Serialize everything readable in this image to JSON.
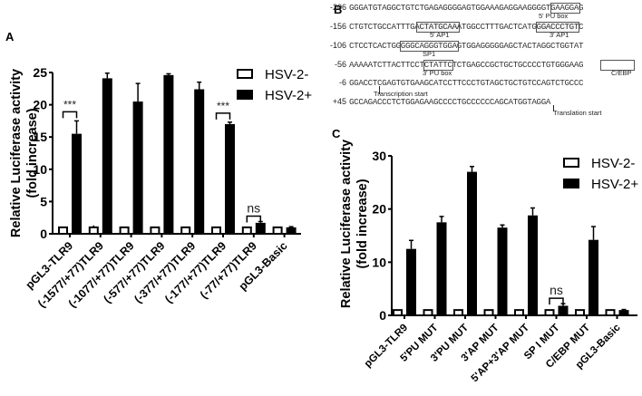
{
  "panels": {
    "A": {
      "label": "A"
    },
    "B": {
      "label": "B"
    },
    "C": {
      "label": "C"
    }
  },
  "legend": {
    "neg": "HSV-2-",
    "pos": "HSV-2+"
  },
  "ylabel_line1": "Relative Luciferase activity",
  "ylabel_line2": "(fold increase)",
  "sequence": {
    "lines": [
      {
        "num": "-206",
        "seq": "GGGATGTAGGCTGTCTGAGAGGGGAGTGGAAAGAGGAAGGGGTGAAGGAG"
      },
      {
        "num": "-156",
        "seq": "CTGTCTGCCATTTGACTATGCAAATGGCCTTTGACTCATGGGACCCTGTC"
      },
      {
        "num": "-106",
        "seq": "CTCCTCACTGGGGGCAGGGTGGAGTGGAGGGGGAGCTACTAGGCTGGTAT"
      },
      {
        "num": "-56",
        "seq": "AAAAATCTTACTTCCTCTATTCTCTGAGCCGCTGCTGCCCCTGTGGGAAG"
      },
      {
        "num": "-6",
        "seq": "GGACCTCGAGTGTGAAGCATCCTTCCCTGTAGCTGCTGTCCAGTCTGCCC"
      },
      {
        "num": "+45",
        "seq": "GCCAGACCCTCTGGAGAAGCCCCTGCCCCCCAGCATGGTAGGA"
      }
    ],
    "annotations": {
      "pu5": "5' PU box",
      "ap1_5": "5' AP1",
      "ap1_3": "3' AP1",
      "sp1": "SP1",
      "pu3": "3' PU box",
      "cebp": "C/EBP",
      "tx_start": "Transcription start",
      "tl_start": "Translation start"
    }
  },
  "chart_data": [
    {
      "panel": "A",
      "type": "bar",
      "title": "",
      "xlabel": "",
      "ylabel": "Relative Luciferase activity (fold increase)",
      "ylim": [
        0,
        25
      ],
      "yticks": [
        0,
        5,
        10,
        15,
        20,
        25
      ],
      "categories": [
        "pGL3-TLR9",
        "(-1577/+77)TLR9",
        "(-1077/+77)TLR9",
        "(-577/+77)TLR9",
        "(-377/+77)TLR9",
        "(-177/+77)TLR9",
        "(-77/+77)TLR9",
        "pGL3-Basic"
      ],
      "series": [
        {
          "name": "HSV-2-",
          "values": [
            1.0,
            1.0,
            1.0,
            1.0,
            1.0,
            1.0,
            1.0,
            1.0
          ],
          "errors": [
            0.1,
            0.3,
            0.1,
            0.1,
            0.1,
            0.1,
            0.1,
            0.1
          ]
        },
        {
          "name": "HSV-2+",
          "values": [
            15.5,
            24.1,
            20.5,
            24.6,
            22.4,
            17.0,
            1.7,
            1.0
          ],
          "errors": [
            2.0,
            0.8,
            2.8,
            0.2,
            1.1,
            0.3,
            0.2,
            0.1
          ]
        }
      ],
      "annotations": [
        {
          "category": "pGL3-TLR9",
          "text": "***"
        },
        {
          "category": "(-177/+77)TLR9",
          "text": "***"
        },
        {
          "category": "(-77/+77)TLR9",
          "text": "ns"
        }
      ],
      "legend_position": "top-right",
      "grid": false
    },
    {
      "panel": "C",
      "type": "bar",
      "title": "",
      "xlabel": "",
      "ylabel": "Relative Luciferase activity (fold increase)",
      "ylim": [
        0,
        30
      ],
      "yticks": [
        0,
        10,
        20,
        30
      ],
      "categories": [
        "pGL3-TLR9",
        "5'PU MUT",
        "3'PU MUT",
        "3'AP MUT",
        "5'AP+3'AP MUT",
        "SP I MUT",
        "C/EBP MUT",
        "pGL3-Basic"
      ],
      "series": [
        {
          "name": "HSV-2-",
          "values": [
            1.0,
            1.0,
            1.0,
            1.0,
            1.0,
            1.0,
            1.0,
            1.0
          ],
          "errors": [
            0.1,
            0.1,
            0.1,
            0.1,
            0.1,
            0.1,
            0.1,
            0.1
          ]
        },
        {
          "name": "HSV-2+",
          "values": [
            12.5,
            17.5,
            27.0,
            16.5,
            18.8,
            1.8,
            14.2,
            1.0
          ],
          "errors": [
            1.6,
            1.1,
            1.0,
            0.5,
            1.4,
            0.4,
            2.5,
            0.1
          ]
        }
      ],
      "annotations": [
        {
          "category": "SP I MUT",
          "text": "ns"
        }
      ],
      "legend_position": "top-right",
      "grid": false
    }
  ]
}
